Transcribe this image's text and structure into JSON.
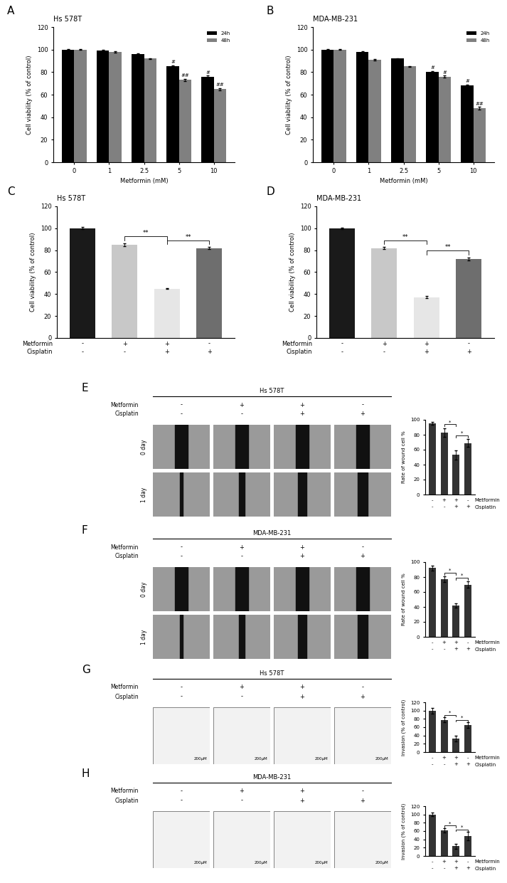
{
  "chart_data": [
    {
      "panel": "A",
      "type": "bar",
      "title": "Hs 578T",
      "xlabel": "Metformin (mM)",
      "ylabel": "Cell viability (% of control)",
      "categories": [
        "0",
        "1",
        "2.5",
        "5",
        "10"
      ],
      "series": [
        {
          "name": "24h",
          "color": "#000000",
          "values": [
            100,
            99,
            96,
            85,
            76
          ],
          "errors": [
            0.5,
            0.5,
            0.5,
            1,
            1
          ],
          "significance": [
            null,
            null,
            null,
            "#",
            "#"
          ]
        },
        {
          "name": "48h",
          "color": "#808080",
          "values": [
            100,
            98,
            92,
            73,
            65
          ],
          "errors": [
            0.5,
            0.5,
            0.5,
            1,
            1
          ],
          "significance": [
            null,
            null,
            null,
            "##",
            "##"
          ]
        }
      ],
      "ylim": [
        0,
        120
      ],
      "yticks": [
        0,
        20,
        40,
        60,
        80,
        100,
        120
      ],
      "legend": "upper right"
    },
    {
      "panel": "B",
      "type": "bar",
      "title": "MDA-MB-231",
      "xlabel": "Metformin (mM)",
      "ylabel": "Cell viability (% of control)",
      "categories": [
        "0",
        "1",
        "2.5",
        "5",
        "10"
      ],
      "series": [
        {
          "name": "24h",
          "color": "#000000",
          "values": [
            100,
            98,
            92,
            80,
            68
          ],
          "errors": [
            0.5,
            0.5,
            0.5,
            1,
            1
          ],
          "significance": [
            null,
            null,
            null,
            "#",
            "#"
          ]
        },
        {
          "name": "48h",
          "color": "#808080",
          "values": [
            100,
            91,
            85,
            76,
            48
          ],
          "errors": [
            0.5,
            0.5,
            0.5,
            1,
            1
          ],
          "significance": [
            null,
            null,
            null,
            "#",
            "##"
          ]
        }
      ],
      "ylim": [
        0,
        120
      ],
      "yticks": [
        0,
        20,
        40,
        60,
        80,
        100,
        120
      ],
      "legend": "upper right"
    },
    {
      "panel": "C",
      "type": "bar",
      "title": "Hs 578T",
      "ylabel": "Cell viability (% of control)",
      "values": [
        100,
        85,
        45,
        82
      ],
      "errors": [
        1,
        1.5,
        0.5,
        1
      ],
      "colors": [
        "#1a1a1a",
        "#c8c8c8",
        "#e6e6e6",
        "#6e6e6e"
      ],
      "treatments": [
        {
          "name": "Metformin",
          "values": [
            "-",
            "+",
            "+",
            "-"
          ]
        },
        {
          "name": "Cisplatin",
          "values": [
            "-",
            "-",
            "+",
            "+"
          ]
        }
      ],
      "comparisons": [
        {
          "from": 1,
          "to": 2,
          "label": "**"
        },
        {
          "from": 2,
          "to": 3,
          "label": "**"
        }
      ],
      "ylim": [
        0,
        120
      ],
      "yticks": [
        0,
        20,
        40,
        60,
        80,
        100,
        120
      ],
      "tick_labels": "y"
    },
    {
      "panel": "D",
      "type": "bar",
      "title": "MDA-MB-231",
      "ylabel": "Cell viability (% of control)",
      "values": [
        100,
        82,
        37,
        72
      ],
      "errors": [
        0.5,
        1,
        1,
        1.5
      ],
      "colors": [
        "#1a1a1a",
        "#c8c8c8",
        "#e6e6e6",
        "#6e6e6e"
      ],
      "treatments": [
        {
          "name": "Metformin",
          "values": [
            "-",
            "+",
            "+",
            "-"
          ]
        },
        {
          "name": "Cisplatin",
          "values": [
            "-",
            "-",
            "+",
            "+"
          ]
        }
      ],
      "comparisons": [
        {
          "from": 1,
          "to": 2,
          "label": "**"
        },
        {
          "from": 2,
          "to": 3,
          "label": "**"
        }
      ],
      "ylim": [
        0,
        120
      ],
      "yticks": [
        0,
        20,
        40,
        60,
        80,
        100,
        120
      ],
      "tick_labels": "y"
    },
    {
      "panel": "E",
      "type": "bar",
      "ylabel": "Rate of wound cell %",
      "values": [
        95,
        83,
        53,
        69
      ],
      "errors": [
        2,
        6,
        6,
        5
      ],
      "color": "#333333",
      "treatments": [
        {
          "name": "Metformin",
          "values": [
            "-",
            "+",
            "+",
            "-"
          ]
        },
        {
          "name": "Cisplatin",
          "values": [
            "-",
            "-",
            "+",
            "+"
          ]
        }
      ],
      "comparisons": [
        {
          "from": 1,
          "to": 2,
          "label": "*"
        },
        {
          "from": 2,
          "to": 3,
          "label": "*"
        }
      ],
      "ylim": [
        0,
        100
      ],
      "yticks": [
        0,
        20,
        40,
        60,
        80,
        100
      ],
      "tick_labels": "y"
    },
    {
      "panel": "F",
      "type": "bar",
      "ylabel": "Rate of wound cell %",
      "values": [
        92,
        77,
        42,
        70
      ],
      "errors": [
        3,
        4,
        3,
        4
      ],
      "color": "#333333",
      "treatments": [
        {
          "name": "Metformin",
          "values": [
            "-",
            "+",
            "+",
            "-"
          ]
        },
        {
          "name": "Cisplatin",
          "values": [
            "-",
            "-",
            "+",
            "+"
          ]
        }
      ],
      "comparisons": [
        {
          "from": 1,
          "to": 2,
          "label": "*"
        },
        {
          "from": 2,
          "to": 3,
          "label": "*"
        }
      ],
      "ylim": [
        0,
        100
      ],
      "yticks": [
        0,
        20,
        40,
        60,
        80,
        100
      ],
      "tick_labels": "y"
    },
    {
      "panel": "G",
      "type": "bar",
      "ylabel": "Invasion (% of control)",
      "values": [
        100,
        78,
        33,
        65
      ],
      "errors": [
        7,
        6,
        7,
        7
      ],
      "color": "#333333",
      "treatments": [
        {
          "name": "Metformin",
          "values": [
            "-",
            "+",
            "+",
            "-"
          ]
        },
        {
          "name": "Cisplatin",
          "values": [
            "-",
            "-",
            "+",
            "+"
          ]
        }
      ],
      "comparisons": [
        {
          "from": 1,
          "to": 2,
          "label": "*"
        },
        {
          "from": 2,
          "to": 3,
          "label": "*"
        }
      ],
      "ylim": [
        0,
        120
      ],
      "yticks": [
        0,
        20,
        40,
        60,
        80,
        100,
        120
      ],
      "tick_labels": "y"
    },
    {
      "panel": "H",
      "type": "bar",
      "ylabel": "Invasion (% of control)",
      "values": [
        100,
        62,
        24,
        48
      ],
      "errors": [
        4,
        5,
        6,
        10
      ],
      "color": "#333333",
      "treatments": [
        {
          "name": "Metformin",
          "values": [
            "-",
            "+",
            "+",
            "-"
          ]
        },
        {
          "name": "Cisplatin",
          "values": [
            "-",
            "-",
            "+",
            "+"
          ]
        }
      ],
      "comparisons": [
        {
          "from": 1,
          "to": 2,
          "label": "*"
        },
        {
          "from": 2,
          "to": 3,
          "label": "*"
        }
      ],
      "ylim": [
        0,
        120
      ],
      "yticks": [
        0,
        20,
        40,
        60,
        80,
        100,
        120
      ],
      "tick_labels": "y"
    }
  ],
  "image_panels": [
    {
      "panel": "E",
      "title": "Hs 578T",
      "treatments": [
        {
          "name": "Metformin",
          "values": [
            "-",
            "+",
            "+",
            "-"
          ]
        },
        {
          "name": "Cisplatin",
          "values": [
            "-",
            "-",
            "+",
            "+"
          ]
        }
      ],
      "rows": [
        "0 day",
        "1 day"
      ]
    },
    {
      "panel": "F",
      "title": "MDA-MB-231",
      "treatments": [
        {
          "name": "Metformin",
          "values": [
            "-",
            "+",
            "+",
            "-"
          ]
        },
        {
          "name": "Cisplatin",
          "values": [
            "-",
            "-",
            "+",
            "+"
          ]
        }
      ],
      "rows": [
        "0 day",
        "1 day"
      ]
    },
    {
      "panel": "G",
      "title": "Hs 578T",
      "treatments": [
        {
          "name": "Metformin",
          "values": [
            "-",
            "+",
            "+",
            "-"
          ]
        },
        {
          "name": "Cisplatin",
          "values": [
            "-",
            "-",
            "+",
            "+"
          ]
        }
      ],
      "scale_label": "200μM"
    },
    {
      "panel": "H",
      "title": "MDA-MB-231",
      "treatments": [
        {
          "name": "Metformin",
          "values": [
            "-",
            "+",
            "+",
            "-"
          ]
        },
        {
          "name": "Cisplatin",
          "values": [
            "-",
            "-",
            "+",
            "+"
          ]
        }
      ],
      "scale_label": "200μM"
    }
  ]
}
